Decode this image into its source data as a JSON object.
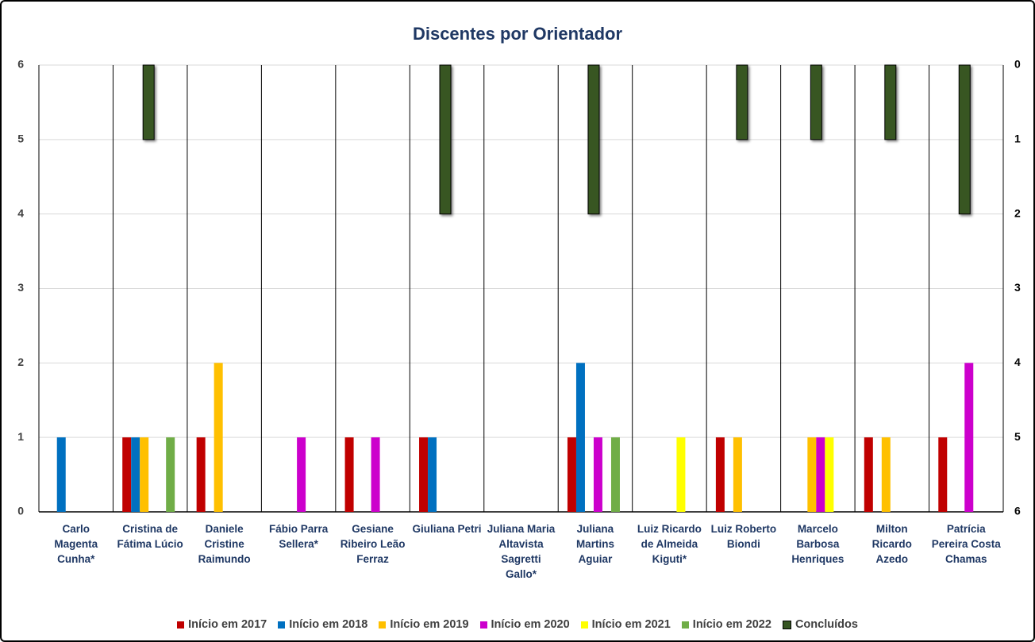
{
  "chart_data": {
    "type": "bar",
    "title": "Discentes por Orientador",
    "categories": [
      "Carlo Magenta Cunha*",
      "Cristina de Fátima Lúcio",
      "Daniele Cristine Raimundo",
      "Fábio Parra Sellera*",
      "Gesiane Ribeiro Leão Ferraz",
      "Giuliana Petri",
      "Juliana Maria Altavista Sagretti Gallo*",
      "Juliana Martins Aguiar",
      "Luiz Ricardo de Almeida Kiguti*",
      "Luiz Roberto Biondi",
      "Marcelo Barbosa Henriques",
      "Milton Ricardo Azedo",
      "Patrícia Pereira Costa Chamas"
    ],
    "series": [
      {
        "name": "Início em 2017",
        "color": "#c00000",
        "values": [
          0,
          1,
          1,
          0,
          1,
          1,
          0,
          1,
          0,
          1,
          0,
          1,
          1
        ]
      },
      {
        "name": "Início em 2018",
        "color": "#0070c0",
        "values": [
          1,
          1,
          0,
          0,
          0,
          1,
          0,
          2,
          0,
          0,
          0,
          0,
          0
        ]
      },
      {
        "name": "Início em 2019",
        "color": "#ffc000",
        "values": [
          0,
          1,
          2,
          0,
          0,
          0,
          0,
          0,
          0,
          1,
          1,
          1,
          0
        ]
      },
      {
        "name": "Início em 2020",
        "color": "#cc00cc",
        "values": [
          0,
          0,
          0,
          1,
          1,
          0,
          0,
          1,
          0,
          0,
          1,
          0,
          2
        ]
      },
      {
        "name": "Início em 2021",
        "color": "#ffff00",
        "values": [
          0,
          0,
          0,
          0,
          0,
          0,
          0,
          0,
          1,
          0,
          1,
          0,
          0
        ]
      },
      {
        "name": "Início em 2022",
        "color": "#70ad47",
        "values": [
          0,
          1,
          0,
          0,
          0,
          0,
          0,
          1,
          0,
          0,
          0,
          0,
          0
        ]
      },
      {
        "name": "Concluídos",
        "color": "#375623",
        "axis": "y2",
        "values": [
          0,
          1,
          0,
          0,
          0,
          2,
          0,
          2,
          0,
          1,
          1,
          1,
          2
        ]
      }
    ],
    "ylim": [
      0,
      6
    ],
    "yticks": [
      0,
      1,
      2,
      3,
      4,
      5,
      6
    ],
    "y2lim": [
      0,
      6
    ],
    "y2ticks": [
      0,
      1,
      2,
      3,
      4,
      5,
      6
    ],
    "y2_reversed": true,
    "grid": true,
    "legend": "bottom"
  }
}
